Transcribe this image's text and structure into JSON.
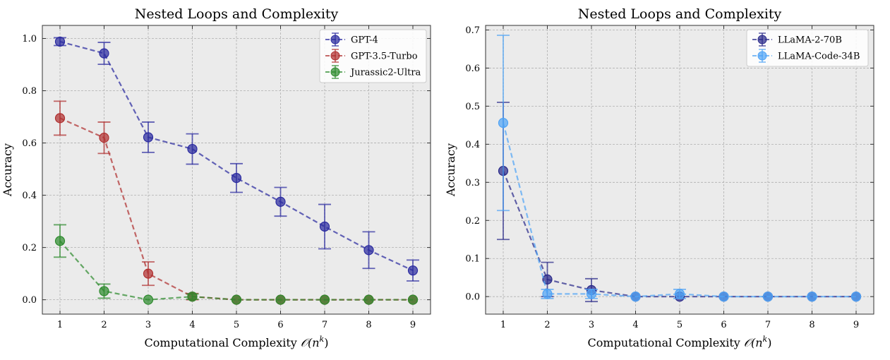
{
  "colors": {
    "gpt4": "#2b2ba0",
    "gpt35": "#b03030",
    "jurassic": "#2e8b2e",
    "llama70": "#2a2a8a",
    "llamacode": "#4fa3f5"
  },
  "chart_data": [
    {
      "type": "line",
      "title": "Nested Loops and Complexity",
      "xlabel": "Computational Complexity",
      "xlabel_math": "𝒪(n",
      "xlabel_sup": "k",
      "xlabel_close": ")",
      "ylabel": "Accuracy",
      "x": [
        1,
        2,
        3,
        4,
        5,
        6,
        7,
        8,
        9
      ],
      "xlim": [
        0.6,
        9.4
      ],
      "ylim": [
        -0.055,
        1.05
      ],
      "xticks": [
        "1",
        "2",
        "3",
        "4",
        "5",
        "6",
        "7",
        "8",
        "9"
      ],
      "yticks": [
        0.0,
        0.2,
        0.4,
        0.6,
        0.8,
        1.0
      ],
      "ytick_labels": [
        "0.0",
        "0.2",
        "0.4",
        "0.6",
        "0.8",
        "1.0"
      ],
      "legend_position": "top-right",
      "series": [
        {
          "name": "GPT-4",
          "color_key": "gpt4",
          "values": [
            0.988,
            0.943,
            0.622,
            0.577,
            0.466,
            0.375,
            0.28,
            0.19,
            0.112
          ],
          "errors": [
            0.015,
            0.042,
            0.058,
            0.058,
            0.055,
            0.055,
            0.085,
            0.07,
            0.04
          ]
        },
        {
          "name": "GPT-3.5-Turbo",
          "color_key": "gpt35",
          "values": [
            0.695,
            0.62,
            0.1,
            0.012,
            0.0,
            0.0,
            0.0,
            0.0,
            0.0
          ],
          "errors": [
            0.065,
            0.06,
            0.045,
            0.012,
            0.0,
            0.0,
            0.0,
            0.0,
            0.0
          ]
        },
        {
          "name": "Jurassic2-Ultra",
          "color_key": "jurassic",
          "values": [
            0.225,
            0.033,
            0.0,
            0.012,
            0.0,
            0.0,
            0.0,
            0.0,
            0.0
          ],
          "errors": [
            0.062,
            0.027,
            0.0,
            0.01,
            0.0,
            0.0,
            0.0,
            0.0,
            0.0
          ]
        }
      ]
    },
    {
      "type": "line",
      "title": "Nested Loops and Complexity",
      "xlabel": "Computational Complexity",
      "xlabel_math": "𝒪(n",
      "xlabel_sup": "k",
      "xlabel_close": ")",
      "ylabel": "Accuracy",
      "x": [
        1,
        2,
        3,
        4,
        5,
        6,
        7,
        8,
        9
      ],
      "xlim": [
        0.6,
        9.4
      ],
      "ylim": [
        -0.046,
        0.712
      ],
      "xticks": [
        "1",
        "2",
        "3",
        "4",
        "5",
        "6",
        "7",
        "8",
        "9"
      ],
      "yticks": [
        0.0,
        0.1,
        0.2,
        0.3,
        0.4,
        0.5,
        0.6,
        0.7
      ],
      "ytick_labels": [
        "0.0",
        "0.1",
        "0.2",
        "0.3",
        "0.4",
        "0.5",
        "0.6",
        "0.7"
      ],
      "legend_position": "top-right",
      "series": [
        {
          "name": "LLaMA-2-70B",
          "color_key": "llama70",
          "values": [
            0.33,
            0.045,
            0.017,
            0.0,
            0.0,
            0.0,
            0.0,
            0.0,
            0.0
          ],
          "errors": [
            0.18,
            0.045,
            0.03,
            0.0,
            0.0,
            0.0,
            0.0,
            0.0,
            0.0
          ]
        },
        {
          "name": "LLaMA-Code-34B",
          "color_key": "llamacode",
          "values": [
            0.456,
            0.007,
            0.007,
            0.0,
            0.007,
            0.0,
            0.0,
            0.0,
            0.0
          ],
          "errors": [
            0.23,
            0.012,
            0.012,
            0.0,
            0.012,
            0.0,
            0.0,
            0.0,
            0.0
          ]
        }
      ]
    }
  ]
}
